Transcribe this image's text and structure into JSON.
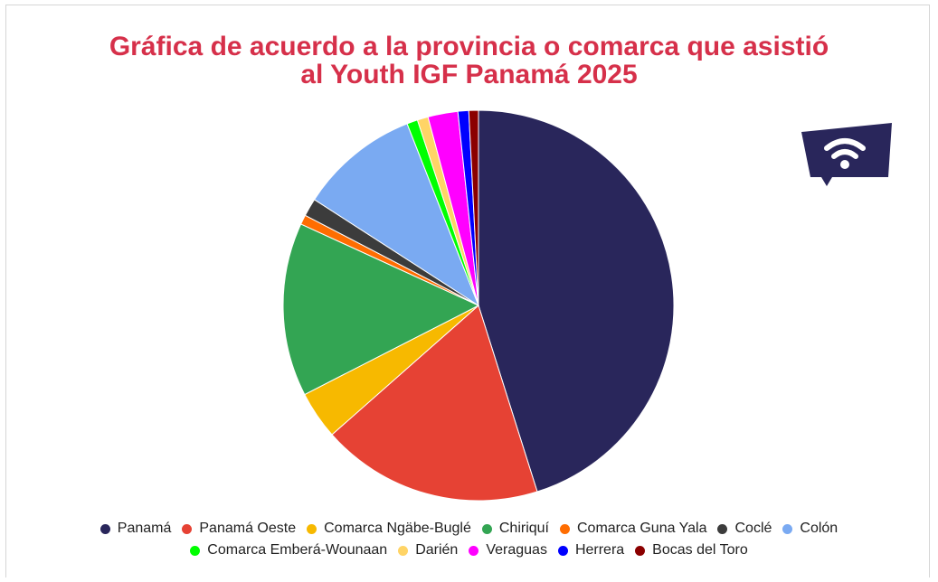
{
  "chart_data": {
    "type": "pie",
    "title_lines": [
      "Gráfica de acuerdo a la provincia o comarca que asistió",
      "al Youth IGF Panamá 2025"
    ],
    "categories": [
      "Panamá",
      "Panamá Oeste",
      "Comarca Ngäbe-Buglé",
      "Chiriquí",
      "Comarca Guna Yala",
      "Coclé",
      "Colón",
      "Comarca Emberá-Wounaan",
      "Darién",
      "Veraguas",
      "Herrera",
      "Bocas del Toro"
    ],
    "values": [
      45.5,
      18.5,
      4.0,
      14.5,
      0.8,
      1.5,
      10.0,
      0.9,
      0.9,
      2.5,
      0.9,
      0.8
    ],
    "colors": [
      "#29265b",
      "#e64234",
      "#f7b900",
      "#33a553",
      "#ff6d01",
      "#3c3c3c",
      "#7aaaf2",
      "#00ff00",
      "#ffd466",
      "#ff00ff",
      "#0000ff",
      "#8b0000"
    ],
    "legend_position": "bottom"
  },
  "logo": {
    "name": "wifi-logo-icon",
    "color": "#29265b"
  }
}
